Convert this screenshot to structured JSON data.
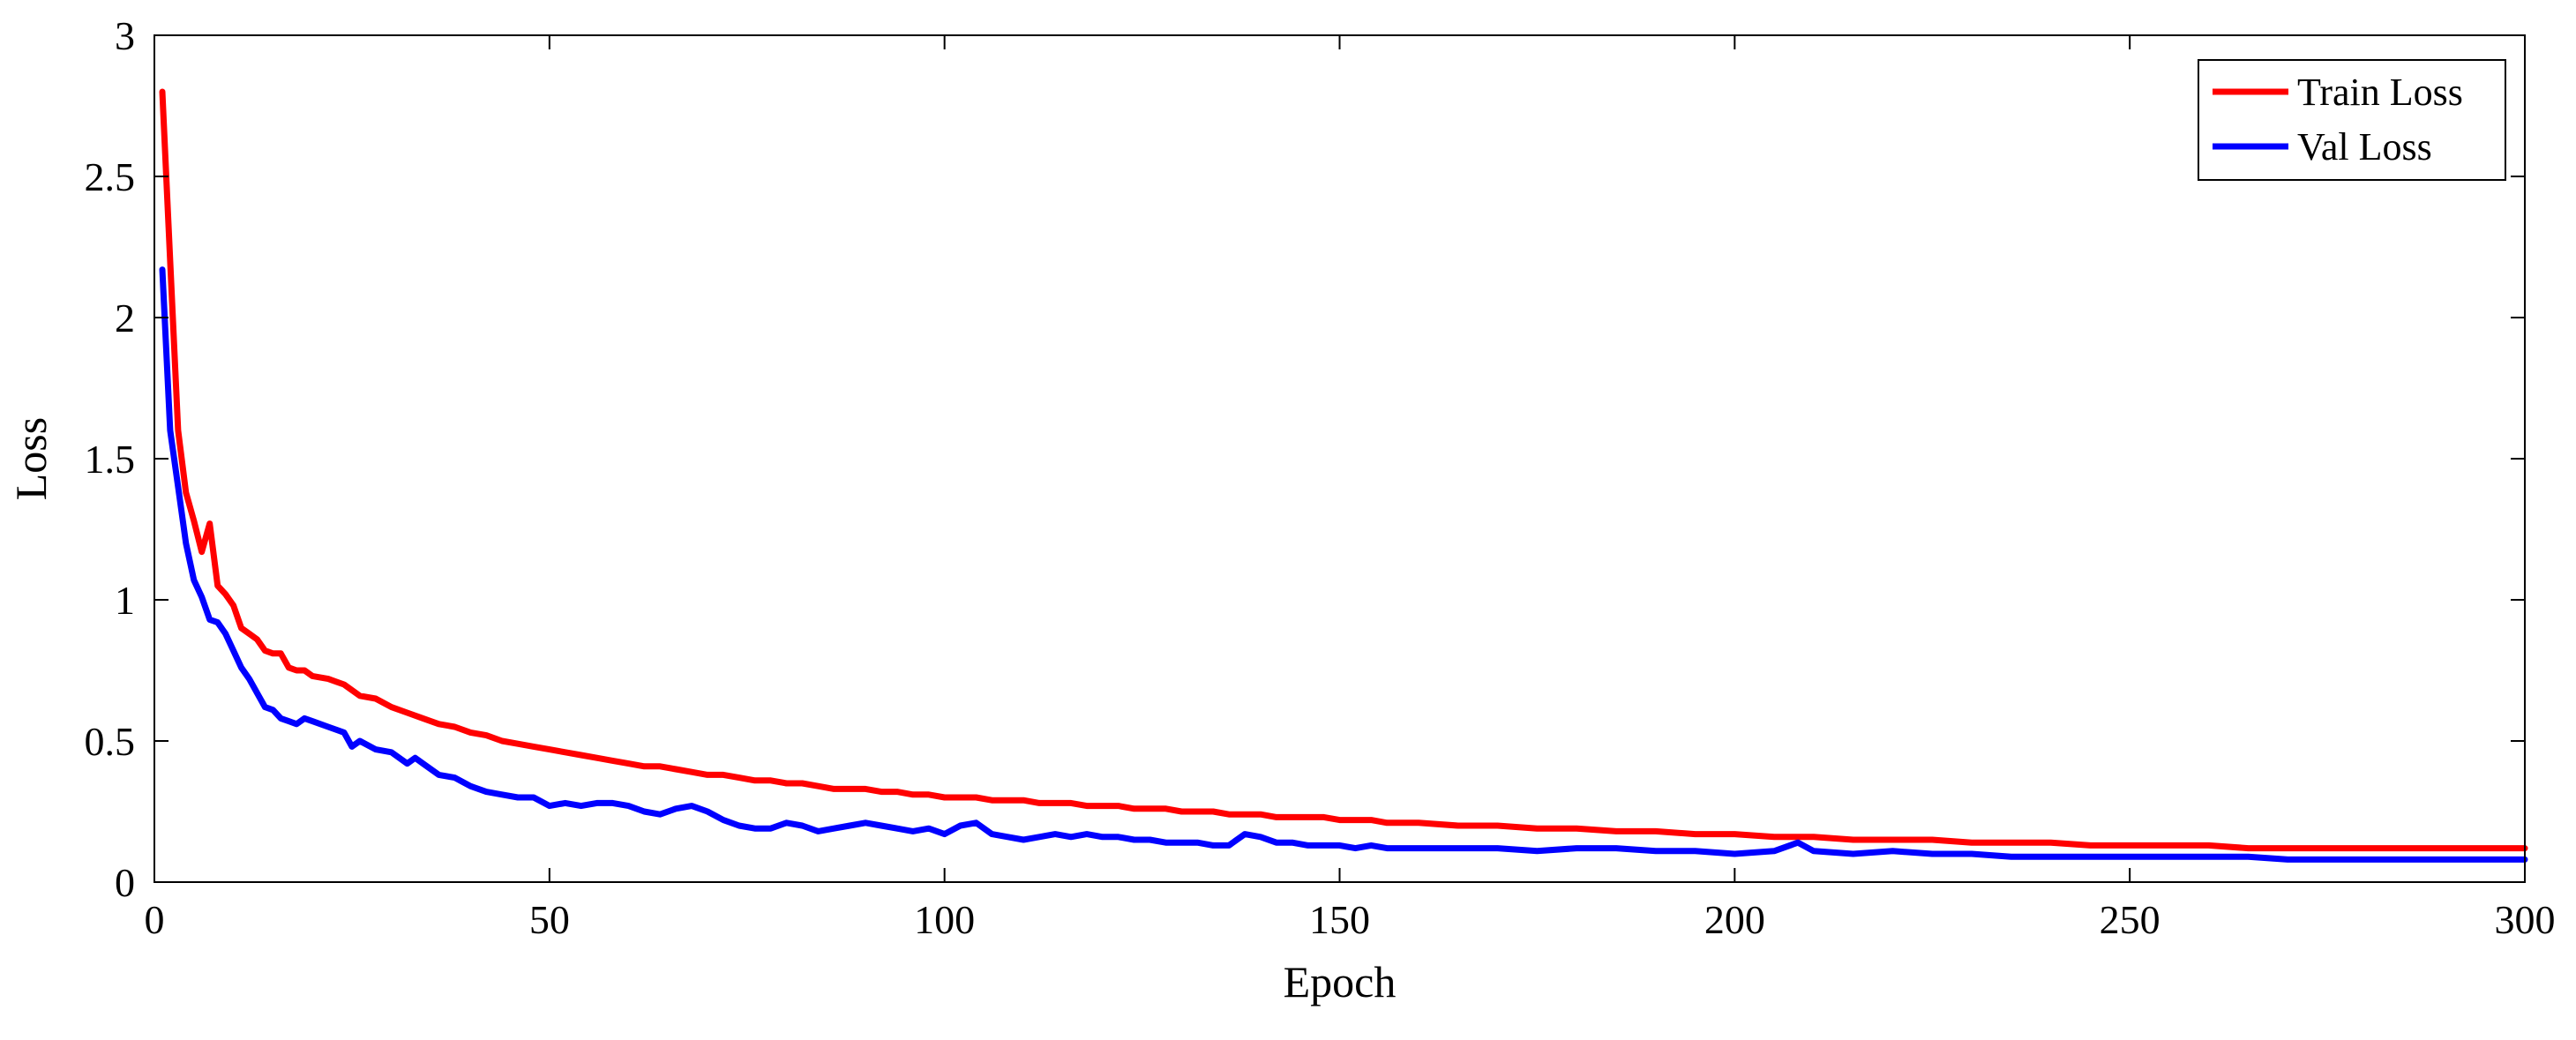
{
  "chart_data": {
    "type": "line",
    "title": "",
    "xlabel": "Epoch",
    "ylabel": "Loss",
    "xlim": [
      0,
      300
    ],
    "ylim": [
      0,
      3
    ],
    "xticks": [
      0,
      50,
      100,
      150,
      200,
      250,
      300
    ],
    "xtick_labels": [
      "0",
      "50",
      "100",
      "150",
      "200",
      "250",
      "300"
    ],
    "yticks": [
      0,
      0.5,
      1,
      1.5,
      2,
      2.5,
      3
    ],
    "ytick_labels": [
      "0",
      "0.5",
      "1",
      "1.5",
      "2",
      "2.5",
      "3"
    ],
    "grid": false,
    "legend_position": "top-right",
    "series": [
      {
        "name": "Train Loss",
        "color": "#ff0000",
        "x": [
          1,
          2,
          3,
          4,
          5,
          6,
          7,
          8,
          9,
          10,
          11,
          12,
          13,
          14,
          15,
          16,
          17,
          18,
          19,
          20,
          22,
          24,
          26,
          28,
          30,
          32,
          34,
          36,
          38,
          40,
          42,
          44,
          46,
          48,
          50,
          52,
          54,
          56,
          58,
          60,
          62,
          64,
          66,
          68,
          70,
          72,
          74,
          76,
          78,
          80,
          82,
          84,
          86,
          88,
          90,
          92,
          94,
          96,
          98,
          100,
          102,
          104,
          106,
          108,
          110,
          112,
          114,
          116,
          118,
          120,
          122,
          124,
          126,
          128,
          130,
          132,
          134,
          136,
          138,
          140,
          142,
          144,
          146,
          148,
          150,
          152,
          154,
          156,
          158,
          160,
          165,
          170,
          175,
          180,
          185,
          190,
          195,
          200,
          205,
          210,
          215,
          220,
          225,
          230,
          235,
          240,
          245,
          250,
          255,
          260,
          265,
          270,
          275,
          280,
          285,
          290,
          295,
          300
        ],
        "values": [
          2.8,
          2.2,
          1.6,
          1.38,
          1.28,
          1.17,
          1.27,
          1.05,
          1.02,
          0.98,
          0.9,
          0.88,
          0.86,
          0.82,
          0.81,
          0.81,
          0.76,
          0.75,
          0.75,
          0.73,
          0.72,
          0.7,
          0.66,
          0.65,
          0.62,
          0.6,
          0.58,
          0.56,
          0.55,
          0.53,
          0.52,
          0.5,
          0.49,
          0.48,
          0.47,
          0.46,
          0.45,
          0.44,
          0.43,
          0.42,
          0.41,
          0.41,
          0.4,
          0.39,
          0.38,
          0.38,
          0.37,
          0.36,
          0.36,
          0.35,
          0.35,
          0.34,
          0.33,
          0.33,
          0.33,
          0.32,
          0.32,
          0.31,
          0.31,
          0.3,
          0.3,
          0.3,
          0.29,
          0.29,
          0.29,
          0.28,
          0.28,
          0.28,
          0.27,
          0.27,
          0.27,
          0.26,
          0.26,
          0.26,
          0.25,
          0.25,
          0.25,
          0.24,
          0.24,
          0.24,
          0.23,
          0.23,
          0.23,
          0.23,
          0.22,
          0.22,
          0.22,
          0.21,
          0.21,
          0.21,
          0.2,
          0.2,
          0.19,
          0.19,
          0.18,
          0.18,
          0.17,
          0.17,
          0.16,
          0.16,
          0.15,
          0.15,
          0.15,
          0.14,
          0.14,
          0.14,
          0.13,
          0.13,
          0.13,
          0.13,
          0.12,
          0.12,
          0.12,
          0.12,
          0.12,
          0.12,
          0.12,
          0.12
        ]
      },
      {
        "name": "Val Loss",
        "color": "#0000ff",
        "x": [
          1,
          2,
          3,
          4,
          5,
          6,
          7,
          8,
          9,
          10,
          11,
          12,
          13,
          14,
          15,
          16,
          17,
          18,
          19,
          20,
          22,
          24,
          25,
          26,
          28,
          30,
          32,
          33,
          34,
          36,
          38,
          40,
          42,
          44,
          46,
          48,
          50,
          52,
          54,
          56,
          58,
          60,
          62,
          64,
          66,
          68,
          70,
          72,
          74,
          76,
          78,
          80,
          82,
          84,
          86,
          88,
          90,
          92,
          94,
          96,
          98,
          100,
          102,
          104,
          106,
          108,
          110,
          112,
          114,
          116,
          118,
          120,
          122,
          124,
          126,
          128,
          130,
          132,
          134,
          136,
          138,
          140,
          142,
          144,
          146,
          148,
          150,
          152,
          154,
          156,
          158,
          160,
          165,
          170,
          175,
          180,
          185,
          190,
          195,
          200,
          205,
          208,
          210,
          215,
          220,
          225,
          230,
          235,
          240,
          245,
          250,
          255,
          260,
          265,
          270,
          275,
          280,
          285,
          290,
          295,
          300
        ],
        "values": [
          2.17,
          1.6,
          1.4,
          1.2,
          1.07,
          1.01,
          0.93,
          0.92,
          0.88,
          0.82,
          0.76,
          0.72,
          0.67,
          0.62,
          0.61,
          0.58,
          0.57,
          0.56,
          0.58,
          0.57,
          0.55,
          0.53,
          0.48,
          0.5,
          0.47,
          0.46,
          0.42,
          0.44,
          0.42,
          0.38,
          0.37,
          0.34,
          0.32,
          0.31,
          0.3,
          0.3,
          0.27,
          0.28,
          0.27,
          0.28,
          0.28,
          0.27,
          0.25,
          0.24,
          0.26,
          0.27,
          0.25,
          0.22,
          0.2,
          0.19,
          0.19,
          0.21,
          0.2,
          0.18,
          0.19,
          0.2,
          0.21,
          0.2,
          0.19,
          0.18,
          0.19,
          0.17,
          0.2,
          0.21,
          0.17,
          0.16,
          0.15,
          0.16,
          0.17,
          0.16,
          0.17,
          0.16,
          0.16,
          0.15,
          0.15,
          0.14,
          0.14,
          0.14,
          0.13,
          0.13,
          0.17,
          0.16,
          0.14,
          0.14,
          0.13,
          0.13,
          0.13,
          0.12,
          0.13,
          0.12,
          0.12,
          0.12,
          0.12,
          0.12,
          0.11,
          0.12,
          0.12,
          0.11,
          0.11,
          0.1,
          0.11,
          0.14,
          0.11,
          0.1,
          0.11,
          0.1,
          0.1,
          0.09,
          0.09,
          0.09,
          0.09,
          0.09,
          0.09,
          0.09,
          0.08,
          0.08,
          0.08,
          0.08,
          0.08,
          0.08,
          0.08
        ]
      }
    ]
  }
}
